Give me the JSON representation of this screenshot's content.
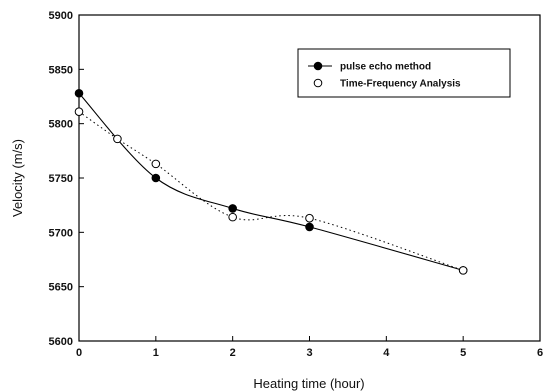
{
  "chart_data": {
    "type": "scatter",
    "xlabel": "Heating time (hour)",
    "ylabel": "Velocity (m/s)",
    "xlim": [
      0,
      6
    ],
    "ylim": [
      5600,
      5900
    ],
    "x_ticks": [
      "0",
      "1",
      "2",
      "3",
      "4",
      "5",
      "6"
    ],
    "y_ticks": [
      "5600",
      "5650",
      "5700",
      "5750",
      "5800",
      "5850",
      "5900"
    ],
    "grid": false,
    "legend_position": "top-right",
    "series": [
      {
        "name": "pulse echo method",
        "marker": "filled-circle",
        "line": "solid",
        "color": "#000000",
        "x": [
          0,
          1,
          2,
          3,
          5
        ],
        "y": [
          5828,
          5750,
          5722,
          5705,
          5665
        ]
      },
      {
        "name": "Time-Frequency Analysis",
        "marker": "open-circle",
        "line": "dotted",
        "color": "#000000",
        "x": [
          0,
          0.5,
          1,
          2,
          3,
          5
        ],
        "y": [
          5811,
          5786,
          5763,
          5714,
          5713,
          5665
        ]
      }
    ]
  }
}
